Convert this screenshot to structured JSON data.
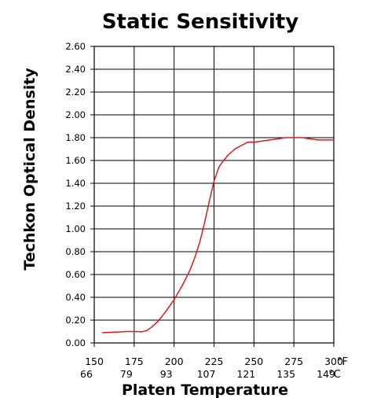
{
  "chart_data": {
    "type": "line",
    "title": "Static Sensitivity",
    "xlabel": "Platen Temperature",
    "ylabel": "Techkon Optical Density",
    "x_unit_primary": "°F",
    "x_unit_secondary": "°C",
    "xlim": [
      150,
      300
    ],
    "ylim": [
      0,
      2.6
    ],
    "grid": true,
    "x_ticks_f": [
      "150",
      "175",
      "200",
      "225",
      "250",
      "275",
      "300"
    ],
    "x_ticks_c": [
      "66",
      "79",
      "93",
      "107",
      "121",
      "135",
      "149"
    ],
    "y_ticks": [
      "0.00",
      "0.20",
      "0.40",
      "0.60",
      "0.80",
      "1.00",
      "1.20",
      "1.40",
      "1.60",
      "1.80",
      "2.00",
      "2.20",
      "2.40",
      "2.60"
    ],
    "series": [
      {
        "color": "#e8141c",
        "x": [
          155,
          160,
          165,
          170,
          175,
          180,
          183,
          186,
          190,
          195,
          200,
          205,
          210,
          213,
          216,
          219,
          222,
          225,
          228,
          231,
          234,
          238,
          242,
          246,
          250,
          255,
          260,
          265,
          270,
          275,
          280,
          285,
          290,
          295,
          300
        ],
        "y": [
          0.09,
          0.093,
          0.096,
          0.1,
          0.1,
          0.098,
          0.11,
          0.14,
          0.19,
          0.28,
          0.38,
          0.5,
          0.64,
          0.75,
          0.88,
          1.05,
          1.24,
          1.42,
          1.54,
          1.6,
          1.65,
          1.7,
          1.73,
          1.76,
          1.76,
          1.77,
          1.78,
          1.79,
          1.8,
          1.8,
          1.8,
          1.79,
          1.78,
          1.78,
          1.78
        ]
      }
    ]
  }
}
